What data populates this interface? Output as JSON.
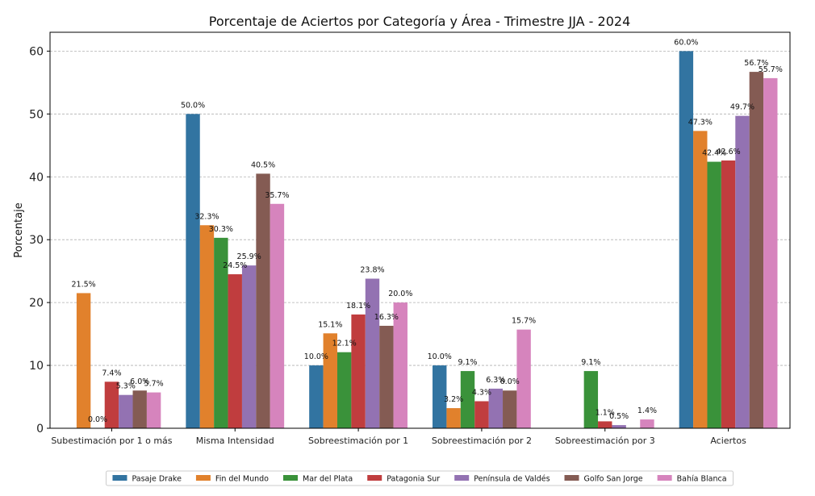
{
  "chart_data": {
    "type": "bar",
    "title": "Porcentaje de Aciertos por Categoría y Área - Trimestre JJA - 2024",
    "xlabel": "",
    "ylabel": "Porcentaje",
    "ylim": [
      0,
      63
    ],
    "yticks": [
      0,
      10,
      20,
      30,
      40,
      50,
      60
    ],
    "grid": true,
    "legend_position": "bottom-center",
    "categories": [
      "Subestimación por 1 o más",
      "Misma Intensidad",
      "Sobreestimación por 1",
      "Sobreestimación por 2",
      "Sobreestimación por 3",
      "Aciertos"
    ],
    "series": [
      {
        "name": "Pasaje Drake",
        "color": "#3274a1",
        "values": [
          null,
          50.0,
          10.0,
          10.0,
          null,
          60.0
        ],
        "labels": [
          "",
          "50.0%",
          "10.0%",
          "10.0%",
          "",
          "60.0%"
        ]
      },
      {
        "name": "Fin del Mundo",
        "color": "#e1812c",
        "values": [
          21.5,
          32.3,
          15.1,
          3.2,
          null,
          47.3
        ],
        "labels": [
          "21.5%",
          "32.3%",
          "15.1%",
          "3.2%",
          "",
          "47.3%"
        ]
      },
      {
        "name": "Mar del Plata",
        "color": "#3a923a",
        "values": [
          0.0,
          30.3,
          12.1,
          9.1,
          9.1,
          42.4
        ],
        "labels": [
          "0.0%",
          "30.3%",
          "12.1%",
          "9.1%",
          "9.1%",
          "42.4%"
        ]
      },
      {
        "name": "Patagonia Sur",
        "color": "#c03d3e",
        "values": [
          7.4,
          24.5,
          18.1,
          4.3,
          1.1,
          42.6
        ],
        "labels": [
          "7.4%",
          "24.5%",
          "18.1%",
          "4.3%",
          "1.1%",
          "42.6%"
        ]
      },
      {
        "name": "Península de Valdés",
        "color": "#9372b2",
        "values": [
          5.3,
          25.9,
          23.8,
          6.3,
          0.5,
          49.7
        ],
        "labels": [
          "5.3%",
          "25.9%",
          "23.8%",
          "6.3%",
          "0.5%",
          "49.7%"
        ]
      },
      {
        "name": "Golfo San Jorge",
        "color": "#845b53",
        "values": [
          6.0,
          40.5,
          16.3,
          6.0,
          null,
          56.7
        ],
        "labels": [
          "6.0%",
          "40.5%",
          "16.3%",
          "6.0%",
          "",
          "56.7%"
        ]
      },
      {
        "name": "Bahía Blanca",
        "color": "#d684bd",
        "values": [
          5.7,
          35.7,
          20.0,
          15.7,
          1.4,
          55.7
        ],
        "labels": [
          "5.7%",
          "35.7%",
          "20.0%",
          "15.7%",
          "1.4%",
          "55.7%"
        ]
      }
    ]
  }
}
